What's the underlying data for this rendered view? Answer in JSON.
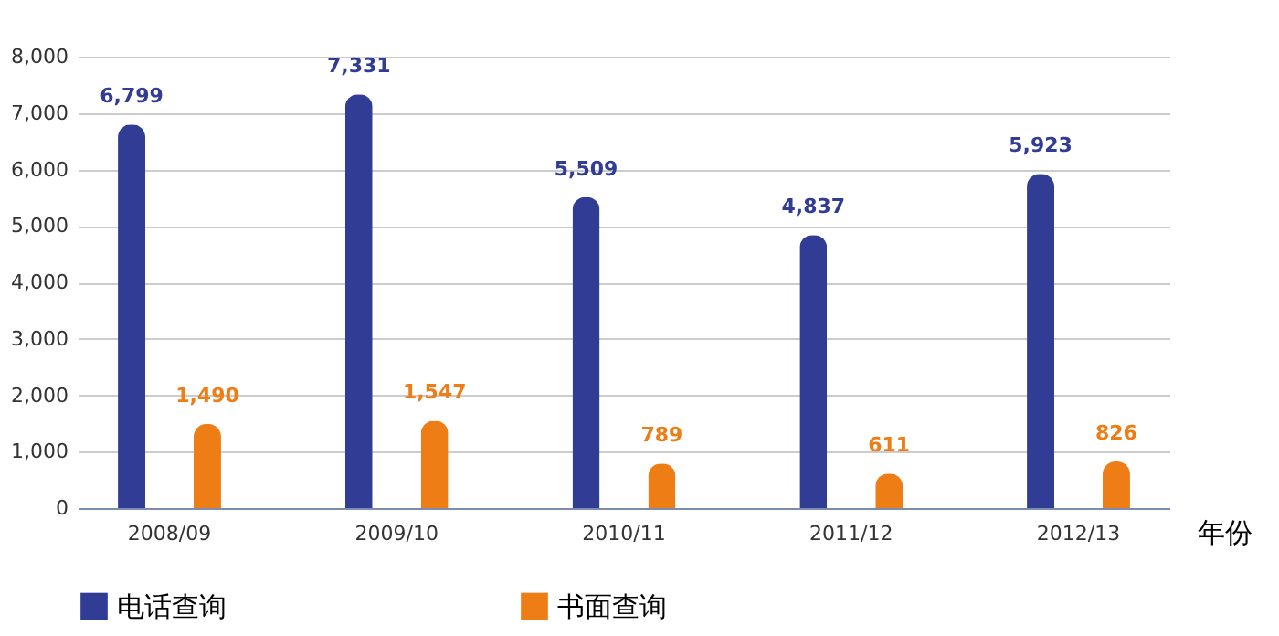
{
  "chart_data": {
    "type": "bar",
    "xlabel": "年份",
    "categories": [
      "2008/09",
      "2009/10",
      "2010/11",
      "2011/12",
      "2012/13"
    ],
    "series": [
      {
        "name": "电话查询",
        "color": "#313c94",
        "values": [
          6799,
          7331,
          5509,
          4837,
          5923
        ],
        "value_labels": [
          "6,799",
          "7,331",
          "5,509",
          "4,837",
          "5,923"
        ]
      },
      {
        "name": "书面查询",
        "color": "#ef7d15",
        "values": [
          1490,
          1547,
          789,
          611,
          826
        ],
        "value_labels": [
          "1,490",
          "1,547",
          "789",
          "611",
          "826"
        ]
      }
    ],
    "ylim": [
      0,
      8000
    ],
    "yticks": [
      0,
      {
        "value": 1000,
        "label": "1,000"
      },
      {
        "value": 2000,
        "label": "2,000"
      },
      {
        "value": 3000,
        "label": "3,000"
      },
      {
        "value": 4000,
        "label": "4,000"
      },
      {
        "value": 5000,
        "label": "5,000"
      },
      {
        "value": 6000,
        "label": "6,000"
      },
      {
        "value": 7000,
        "label": "7,000"
      },
      {
        "value": 8000,
        "label": "8,000"
      }
    ],
    "grid": "y",
    "legend": "bottom",
    "data_labels": true
  }
}
